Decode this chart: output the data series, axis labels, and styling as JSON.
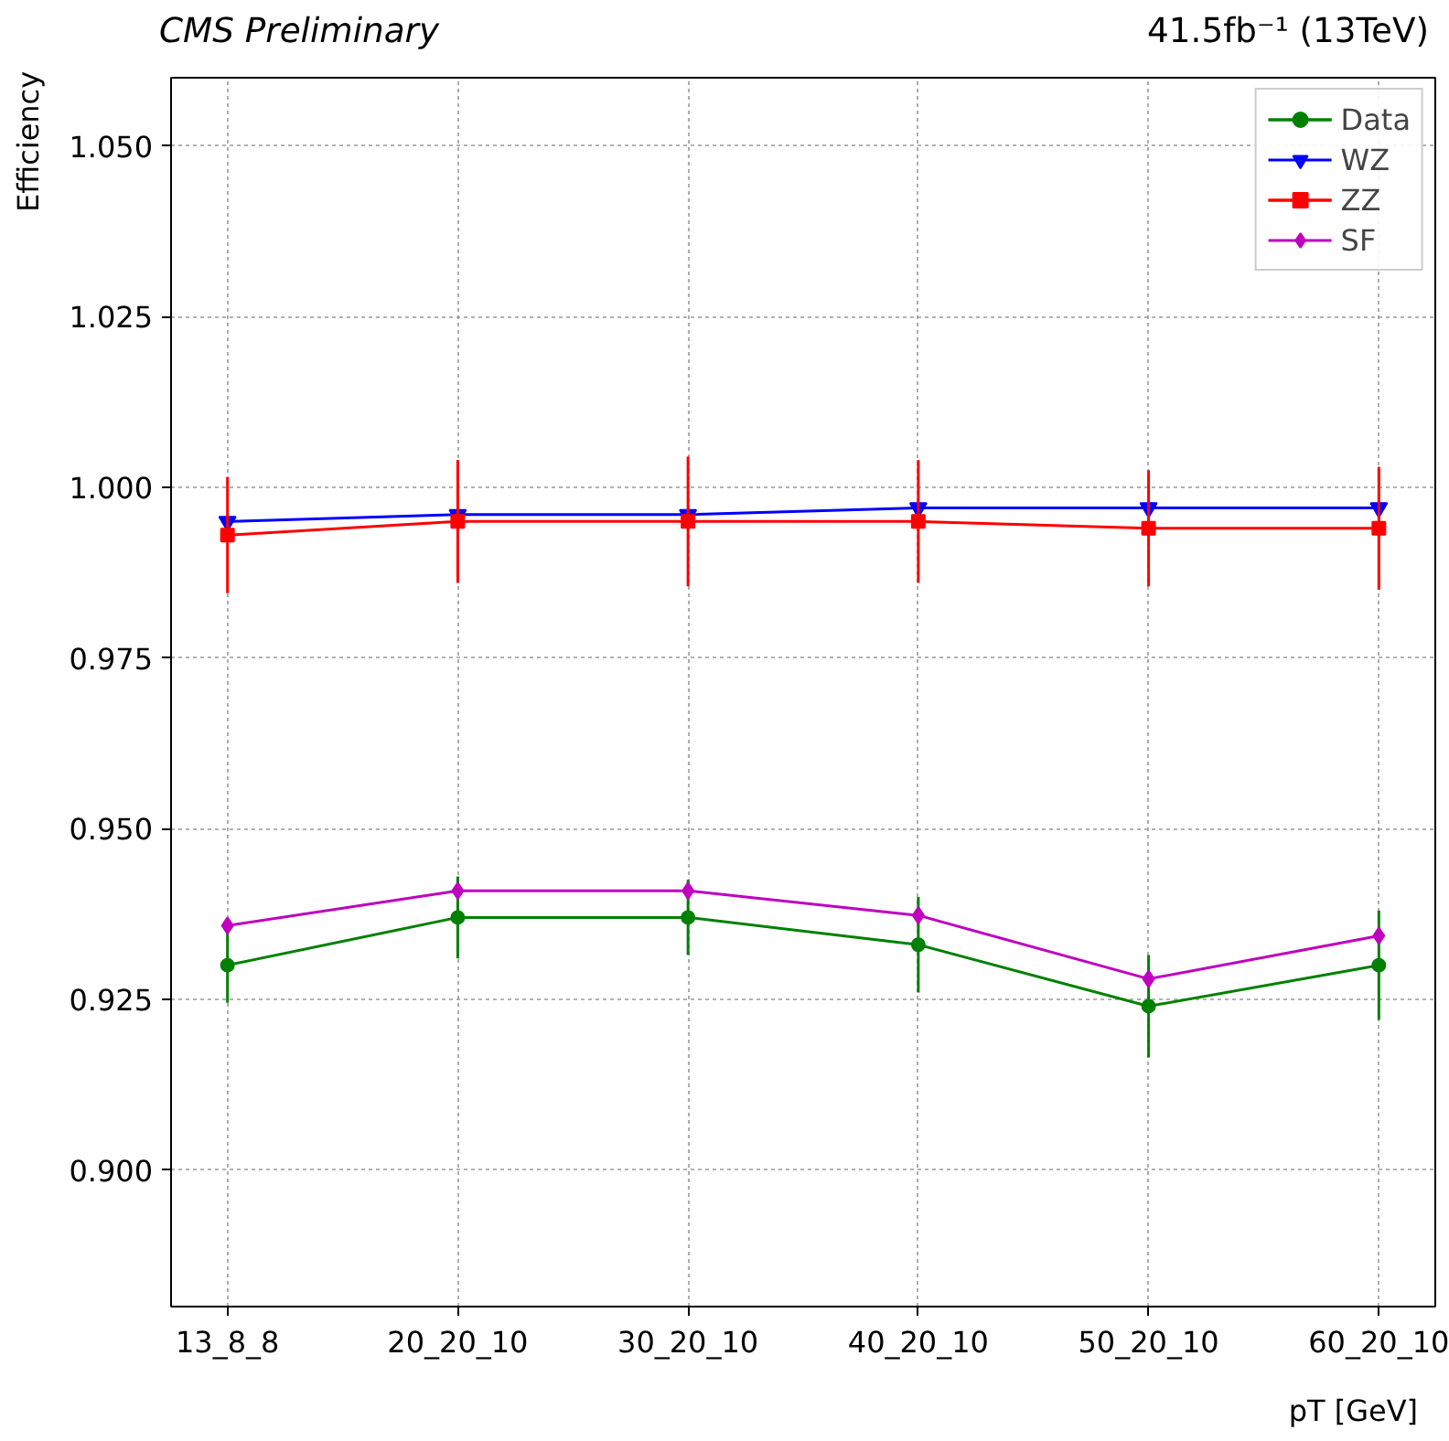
{
  "chart_data": {
    "type": "line",
    "title": "CMS Preliminary",
    "annotations": [
      "41.5fb⁻¹ (13TeV)"
    ],
    "xlabel": "pT [GeV]",
    "ylabel": "Efficiency",
    "categories": [
      "13_8_8",
      "20_20_10",
      "30_20_10",
      "40_20_10",
      "50_20_10",
      "60_20_10"
    ],
    "series": [
      {
        "name": "Data",
        "color": "#008000",
        "marker": "circle",
        "values": [
          0.93,
          0.937,
          0.937,
          0.933,
          0.924,
          0.93
        ],
        "errors": [
          0.0055,
          0.006,
          0.0055,
          0.007,
          0.0075,
          0.008
        ]
      },
      {
        "name": "WZ",
        "color": "#0000ff",
        "marker": "triangle",
        "values": [
          0.995,
          0.996,
          0.996,
          0.997,
          0.997,
          0.997
        ]
      },
      {
        "name": "ZZ",
        "color": "#ff0000",
        "marker": "square",
        "values": [
          0.993,
          0.995,
          0.995,
          0.995,
          0.994,
          0.994
        ],
        "errors": [
          0.0085,
          0.009,
          0.0095,
          0.009,
          0.0085,
          0.009
        ]
      },
      {
        "name": "SF",
        "color": "#bf00bf",
        "marker": "diamond",
        "values": [
          0.9358,
          0.9409,
          0.9409,
          0.9373,
          0.928,
          0.9343
        ]
      }
    ],
    "ylim": [
      0.88,
      1.06
    ],
    "yticks": [
      {
        "value": 0.9,
        "label": "0.900"
      },
      {
        "value": 0.925,
        "label": "0.925"
      },
      {
        "value": 0.95,
        "label": "0.950"
      },
      {
        "value": 0.975,
        "label": "0.975"
      },
      {
        "value": 1.0,
        "label": "1.000"
      },
      {
        "value": 1.025,
        "label": "1.025"
      },
      {
        "value": 1.05,
        "label": "1.050"
      }
    ],
    "grid": true,
    "legend": "top right",
    "line_style": "solid"
  }
}
